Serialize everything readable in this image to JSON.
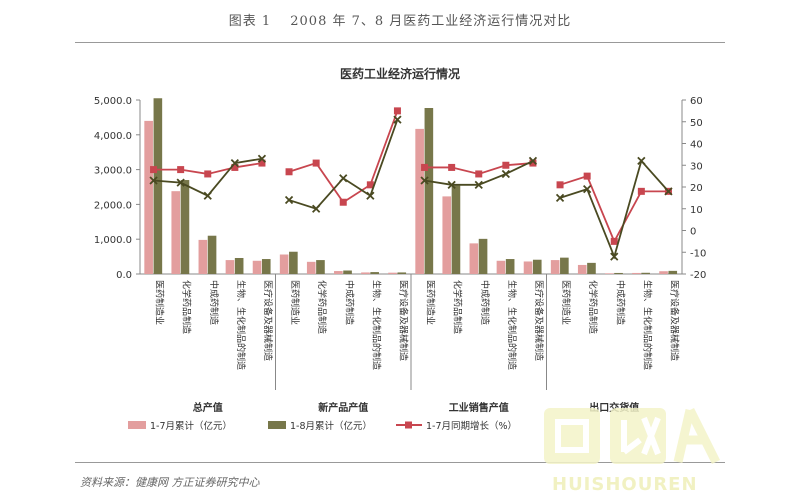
{
  "figure_title": "图表 1　 2008 年 7、8 月医药工业经济运行情况对比",
  "source": "资料来源：健康网 方正证券研究中心",
  "watermark": "HUISHOUREN",
  "chart_data": {
    "type": "bar",
    "title": "医药工业经济运行情况",
    "groups": [
      "总产值",
      "新产品产值",
      "工业销售产值",
      "出口交货值"
    ],
    "categories": [
      "医药制造业",
      "化学药品制造",
      "中成药制造",
      "生物、生化制品的制造",
      "医疗设备及器械制造"
    ],
    "y_left": {
      "ticks": [
        "0.0",
        "1,000.0",
        "2,000.0",
        "3,000.0",
        "4,000.0",
        "5,000.0"
      ],
      "ylim": [
        0,
        5000
      ]
    },
    "y_right": {
      "ticks": [
        "-20",
        "-10",
        "0",
        "10",
        "20",
        "30",
        "40",
        "50",
        "60"
      ],
      "ylim": [
        -20,
        60
      ]
    },
    "series": [
      {
        "name": "1-7月累计（亿元）",
        "type": "bar",
        "axis": "left",
        "color": "#e39e9e",
        "values": [
          [
            4400,
            2380,
            980,
            400,
            380
          ],
          [
            560,
            350,
            85,
            45,
            38
          ],
          [
            4170,
            2230,
            880,
            380,
            360
          ],
          [
            400,
            260,
            20,
            30,
            80
          ]
        ]
      },
      {
        "name": "1-8月累计（亿元）",
        "type": "bar",
        "axis": "left",
        "color": "#77774a",
        "values": [
          [
            5050,
            2700,
            1100,
            460,
            430
          ],
          [
            640,
            400,
            100,
            55,
            45
          ],
          [
            4770,
            2540,
            1010,
            430,
            410
          ],
          [
            470,
            320,
            30,
            35,
            90
          ]
        ]
      },
      {
        "name": "1-7月同期增长（%）",
        "type": "line",
        "axis": "right",
        "color": "#c8464f",
        "marker": "square",
        "values": [
          [
            28,
            28,
            26,
            29,
            31
          ],
          [
            27,
            31,
            13,
            21,
            55
          ],
          [
            29,
            29,
            26,
            30,
            31
          ],
          [
            21,
            25,
            -5,
            18,
            18
          ]
        ]
      },
      {
        "name": "",
        "type": "line",
        "axis": "right",
        "color": "#4a4a22",
        "marker": "x",
        "values": [
          [
            23,
            22,
            16,
            31,
            33
          ],
          [
            14,
            10,
            24,
            16,
            51
          ],
          [
            23,
            21,
            21,
            26,
            32
          ],
          [
            15,
            19,
            -12,
            32,
            18
          ]
        ]
      }
    ],
    "legend_position": "bottom",
    "grid": false
  }
}
